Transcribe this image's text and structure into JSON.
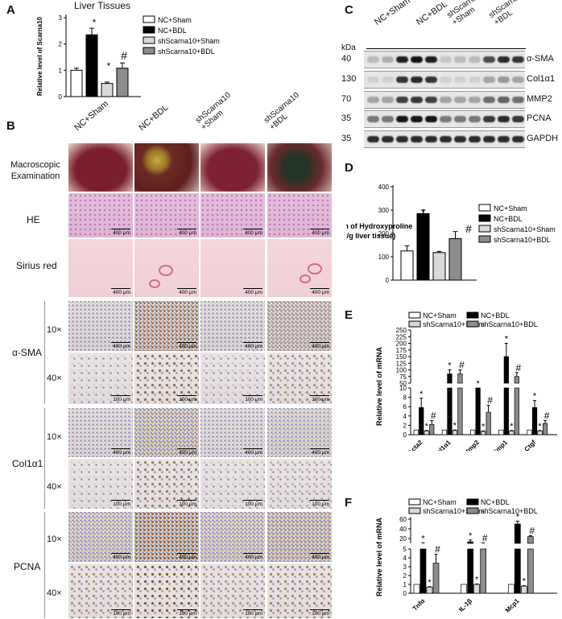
{
  "panel_labels": {
    "a": "A",
    "b": "B",
    "c": "C",
    "d": "D",
    "e": "E",
    "f": "F"
  },
  "panel_a": {
    "title": "Liver Tissues",
    "ylabel": "Relative level of Scarna10",
    "yticks": [
      "0",
      "1",
      "2",
      "3"
    ],
    "legend": [
      "NC+Sham",
      "NC+BDL",
      "shScarna10+Sham",
      "shScarna10+BDL"
    ],
    "marks": [
      "*",
      "*",
      "#"
    ]
  },
  "panel_b": {
    "columns": [
      "NC+Sham",
      "NC+BDL",
      "shScarna10\n+Sham",
      "shScarna10\n+BDL"
    ],
    "rows": {
      "macro": "Macroscopic\nExamination",
      "he": "HE",
      "sirius": "Sirius red",
      "asma": "α-SMA",
      "col": "Col1α1",
      "pcna": "PCNA"
    },
    "mags": [
      "10×",
      "40×"
    ],
    "scale_400": "400 μm",
    "scale_100": "100 μm"
  },
  "panel_c": {
    "columns": [
      "NC+Sham",
      "NC+BDL",
      "shScarna10\n+Sham",
      "shScarna10\n+BDL"
    ],
    "kda_label": "kDa",
    "kda": [
      "40",
      "130",
      "70",
      "35",
      "35"
    ],
    "proteins": [
      "α-SMA",
      "Col1α1",
      "MMP2",
      "PCNA",
      "GAPDH"
    ]
  },
  "panel_d": {
    "ylabel": "Concentration of Hydroxyproline\n(ug/g liver tissue)",
    "yticks": [
      "0",
      "100",
      "200",
      "300",
      "400"
    ],
    "legend": [
      "NC+Sham",
      "NC+BDL",
      "shScarna10+Sham",
      "shScarna10+BDL"
    ],
    "marks": [
      "*",
      "#"
    ]
  },
  "panel_e": {
    "ylabel": "Relative level of mRNA",
    "yticks_low": [
      "0",
      "2",
      "4",
      "6",
      "8",
      "10"
    ],
    "yticks_high": [
      "50",
      "75",
      "100",
      "125",
      "150",
      "175",
      "200",
      "225",
      "250"
    ],
    "legend": [
      "NC+Sham",
      "NC+BDL",
      "shScarna10+Sham",
      "shScarna10+BDL"
    ],
    "genes": [
      "Acta2",
      "Col1α1",
      "Mmp2",
      "Timp1",
      "Ctgf"
    ],
    "marks_star": "*",
    "marks_hash": "#"
  },
  "panel_f": {
    "ylabel": "Relative level of mRNA",
    "yticks_low": [
      "0",
      "1",
      "2",
      "3",
      "4",
      "5"
    ],
    "yticks_high": [
      "20",
      "40",
      "60"
    ],
    "legend": [
      "NC+Sham",
      "NC+BDL",
      "shScarna10+Sham",
      "shScarna10+BDL"
    ],
    "genes": [
      "Tnfα",
      "IL-1β",
      "Mcp1"
    ],
    "marks_star": "*",
    "marks_hash": "#"
  },
  "chart_data": [
    {
      "type": "bar",
      "panel": "A",
      "categories": [
        "NC+Sham",
        "NC+BDL",
        "shScarna10+Sham",
        "shScarna10+BDL"
      ],
      "values": [
        1.0,
        2.35,
        0.5,
        1.08
      ],
      "errors": [
        0.08,
        0.25,
        0.05,
        0.2
      ],
      "ylim": [
        0,
        3
      ],
      "colors": [
        "#ffffff",
        "#000000",
        "#d9d9d9",
        "#8c8c8c"
      ]
    },
    {
      "type": "bar",
      "panel": "D",
      "categories": [
        "NC+Sham",
        "NC+BDL",
        "shScarna10+Sham",
        "shScarna10+BDL"
      ],
      "values": [
        125,
        285,
        118,
        178
      ],
      "errors": [
        22,
        15,
        5,
        30
      ],
      "ylim": [
        0,
        400
      ],
      "colors": [
        "#ffffff",
        "#000000",
        "#d9d9d9",
        "#8c8c8c"
      ]
    },
    {
      "type": "bar",
      "panel": "E",
      "categories": [
        "Acta2",
        "Col1α1",
        "Mmp2",
        "Timp1",
        "Ctgf"
      ],
      "series": [
        {
          "name": "NC+Sham",
          "values": [
            1,
            1,
            1,
            1,
            1
          ],
          "errors": [
            0,
            0,
            0,
            0,
            0
          ]
        },
        {
          "name": "NC+BDL",
          "values": [
            5.8,
            85,
            10,
            150,
            5.8
          ],
          "errors": [
            2,
            15,
            0,
            50,
            1.5
          ]
        },
        {
          "name": "shScarna10+Sham",
          "values": [
            0.8,
            0.9,
            0.7,
            0.8,
            0.8
          ],
          "errors": [
            0.1,
            0.1,
            0.1,
            0.1,
            0.1
          ]
        },
        {
          "name": "shScarna10+BDL",
          "values": [
            2.2,
            85,
            4.8,
            75,
            2.4
          ],
          "errors": [
            0.8,
            15,
            1.5,
            15,
            0.6
          ]
        }
      ],
      "ylim": [
        0,
        250
      ]
    },
    {
      "type": "bar",
      "panel": "F",
      "categories": [
        "Tnfα",
        "IL-1β",
        "Mcp1"
      ],
      "series": [
        {
          "name": "NC+Sham",
          "values": [
            1,
            1,
            1
          ],
          "errors": [
            0,
            0,
            0
          ]
        },
        {
          "name": "NC+BDL",
          "values": [
            10,
            13,
            50
          ],
          "errors": [
            1,
            4,
            6
          ]
        },
        {
          "name": "shScarna10+Sham",
          "values": [
            0.7,
            1,
            0.8
          ],
          "errors": [
            0.05,
            0.05,
            0.05
          ]
        },
        {
          "name": "shScarna10+BDL",
          "values": [
            3.4,
            10,
            24
          ],
          "errors": [
            1,
            1,
            2
          ]
        }
      ],
      "ylim": [
        0,
        60
      ]
    }
  ]
}
